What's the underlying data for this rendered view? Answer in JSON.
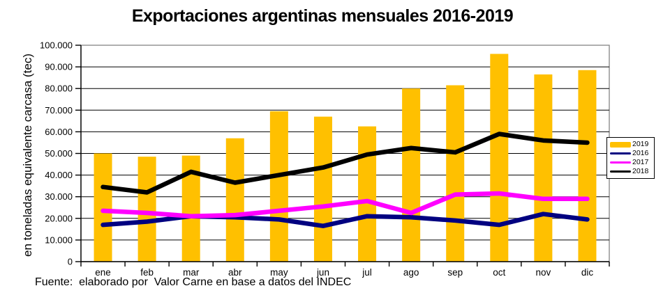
{
  "title": "Exportaciones argentinas mensuales 2016-2019",
  "y_axis_title": "en toneladas equivalente carcasa (tec)",
  "source_note": "Fuente:  elaborado por  Valor Carne en base a datos del INDEC",
  "colors": {
    "2019": "#FFC000",
    "2016": "#000080",
    "2017": "#FF00FF",
    "2018": "#000000",
    "gridline": "#000000",
    "plot_border": "#848484",
    "axis": "#000000",
    "background": "#FFFFFF"
  },
  "legend": {
    "items": [
      {
        "label": "2019",
        "type": "bar",
        "color_key": "2019"
      },
      {
        "label": "2016",
        "type": "line",
        "color_key": "2016"
      },
      {
        "label": "2017",
        "type": "line",
        "color_key": "2017"
      },
      {
        "label": "2018",
        "type": "line",
        "color_key": "2018"
      }
    ]
  },
  "chart_data": {
    "type": "bar",
    "subtype": "bar-and-line-combo",
    "title": "Exportaciones argentinas mensuales 2016-2019",
    "xlabel": "",
    "ylabel": "en toneladas equivalente carcasa (tec)",
    "ylim": [
      0,
      100000
    ],
    "grid": true,
    "legend_position": "right",
    "categories": [
      "ene",
      "feb",
      "mar",
      "abr",
      "may",
      "jun",
      "jul",
      "ago",
      "sep",
      "oct",
      "nov",
      "dic"
    ],
    "y_ticks": [
      {
        "v": 0,
        "label": "0"
      },
      {
        "v": 10000,
        "label": "10.000"
      },
      {
        "v": 20000,
        "label": "20.000"
      },
      {
        "v": 30000,
        "label": "30.000"
      },
      {
        "v": 40000,
        "label": "40.000"
      },
      {
        "v": 50000,
        "label": "50.000"
      },
      {
        "v": 60000,
        "label": "60.000"
      },
      {
        "v": 70000,
        "label": "70.000"
      },
      {
        "v": 80000,
        "label": "80.000"
      },
      {
        "v": 90000,
        "label": "90.000"
      },
      {
        "v": 100000,
        "label": "100.000"
      }
    ],
    "series": [
      {
        "name": "2019",
        "type": "bar",
        "values": [
          50000,
          48500,
          49000,
          57000,
          69500,
          67000,
          62500,
          80000,
          81500,
          96000,
          86500,
          88500
        ]
      },
      {
        "name": "2016",
        "type": "line",
        "values": [
          17000,
          18500,
          21000,
          20500,
          19500,
          16500,
          21000,
          20500,
          19000,
          17000,
          22000,
          19500
        ]
      },
      {
        "name": "2017",
        "type": "line",
        "values": [
          23500,
          22500,
          21000,
          21500,
          23500,
          25500,
          28000,
          22500,
          31000,
          31500,
          29000,
          29000
        ]
      },
      {
        "name": "2018",
        "type": "line",
        "values": [
          34500,
          32000,
          41500,
          36500,
          40000,
          43500,
          49500,
          52500,
          50500,
          59000,
          56000,
          55000
        ]
      }
    ]
  }
}
